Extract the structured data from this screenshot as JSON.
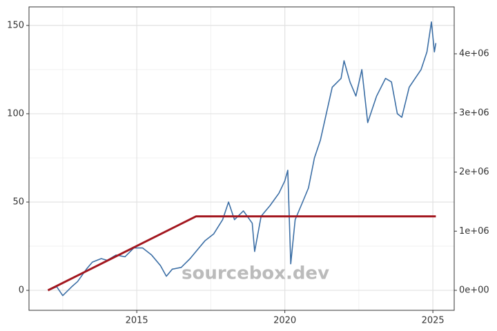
{
  "chart_data": {
    "type": "line",
    "watermark": "sourcebox.dev",
    "xlim": [
      2011.36,
      2025.72
    ],
    "xticks": [
      2015,
      2020,
      2025
    ],
    "ylim": [
      -11.3,
      160.5
    ],
    "yticks": [
      0,
      50,
      100,
      150
    ],
    "y2lim": [
      -338000,
      4793000
    ],
    "y2ticks": [
      {
        "value": 0,
        "label": "0e+00"
      },
      {
        "value": 1000000,
        "label": "1e+06"
      },
      {
        "value": 2000000,
        "label": "2e+06"
      },
      {
        "value": 3000000,
        "label": "3e+06"
      },
      {
        "value": 4000000,
        "label": "4e+06"
      }
    ],
    "grid": true,
    "series": [
      {
        "color": "#3b6ea5",
        "x": [
          2012.0,
          2012.3,
          2012.5,
          2012.8,
          2013.0,
          2013.3,
          2013.5,
          2013.8,
          2014.0,
          2014.3,
          2014.6,
          2014.9,
          2015.2,
          2015.5,
          2015.8,
          2016.0,
          2016.2,
          2016.5,
          2016.8,
          2017.0,
          2017.3,
          2017.6,
          2017.9,
          2018.1,
          2018.3,
          2018.6,
          2018.9,
          2018.98,
          2019.2,
          2019.5,
          2019.8,
          2020.0,
          2020.1,
          2020.2,
          2020.35,
          2020.6,
          2020.8,
          2021.0,
          2021.2,
          2021.4,
          2021.6,
          2021.9,
          2022.0,
          2022.2,
          2022.4,
          2022.6,
          2022.8,
          2022.9,
          2023.1,
          2023.4,
          2023.6,
          2023.8,
          2023.95,
          2024.2,
          2024.4,
          2024.6,
          2024.8,
          2024.95,
          2025.05,
          2025.1
        ],
        "values": [
          0,
          2,
          -3,
          2,
          5,
          12,
          16,
          18,
          17,
          20,
          19,
          24,
          24,
          20,
          14,
          8,
          12,
          13,
          18,
          22,
          28,
          32,
          40,
          50,
          40,
          45,
          38,
          22,
          42,
          48,
          55,
          62,
          68,
          15,
          40,
          50,
          58,
          75,
          85,
          100,
          115,
          120,
          130,
          118,
          110,
          125,
          95,
          100,
          110,
          120,
          118,
          100,
          98,
          115,
          120,
          125,
          135,
          152,
          135,
          140
        ]
      },
      {
        "color": "#a3171f",
        "axis": "y2",
        "x": [
          2012.0,
          2017.0,
          2025.1
        ],
        "values": [
          0,
          1250000,
          1250000
        ]
      }
    ]
  }
}
